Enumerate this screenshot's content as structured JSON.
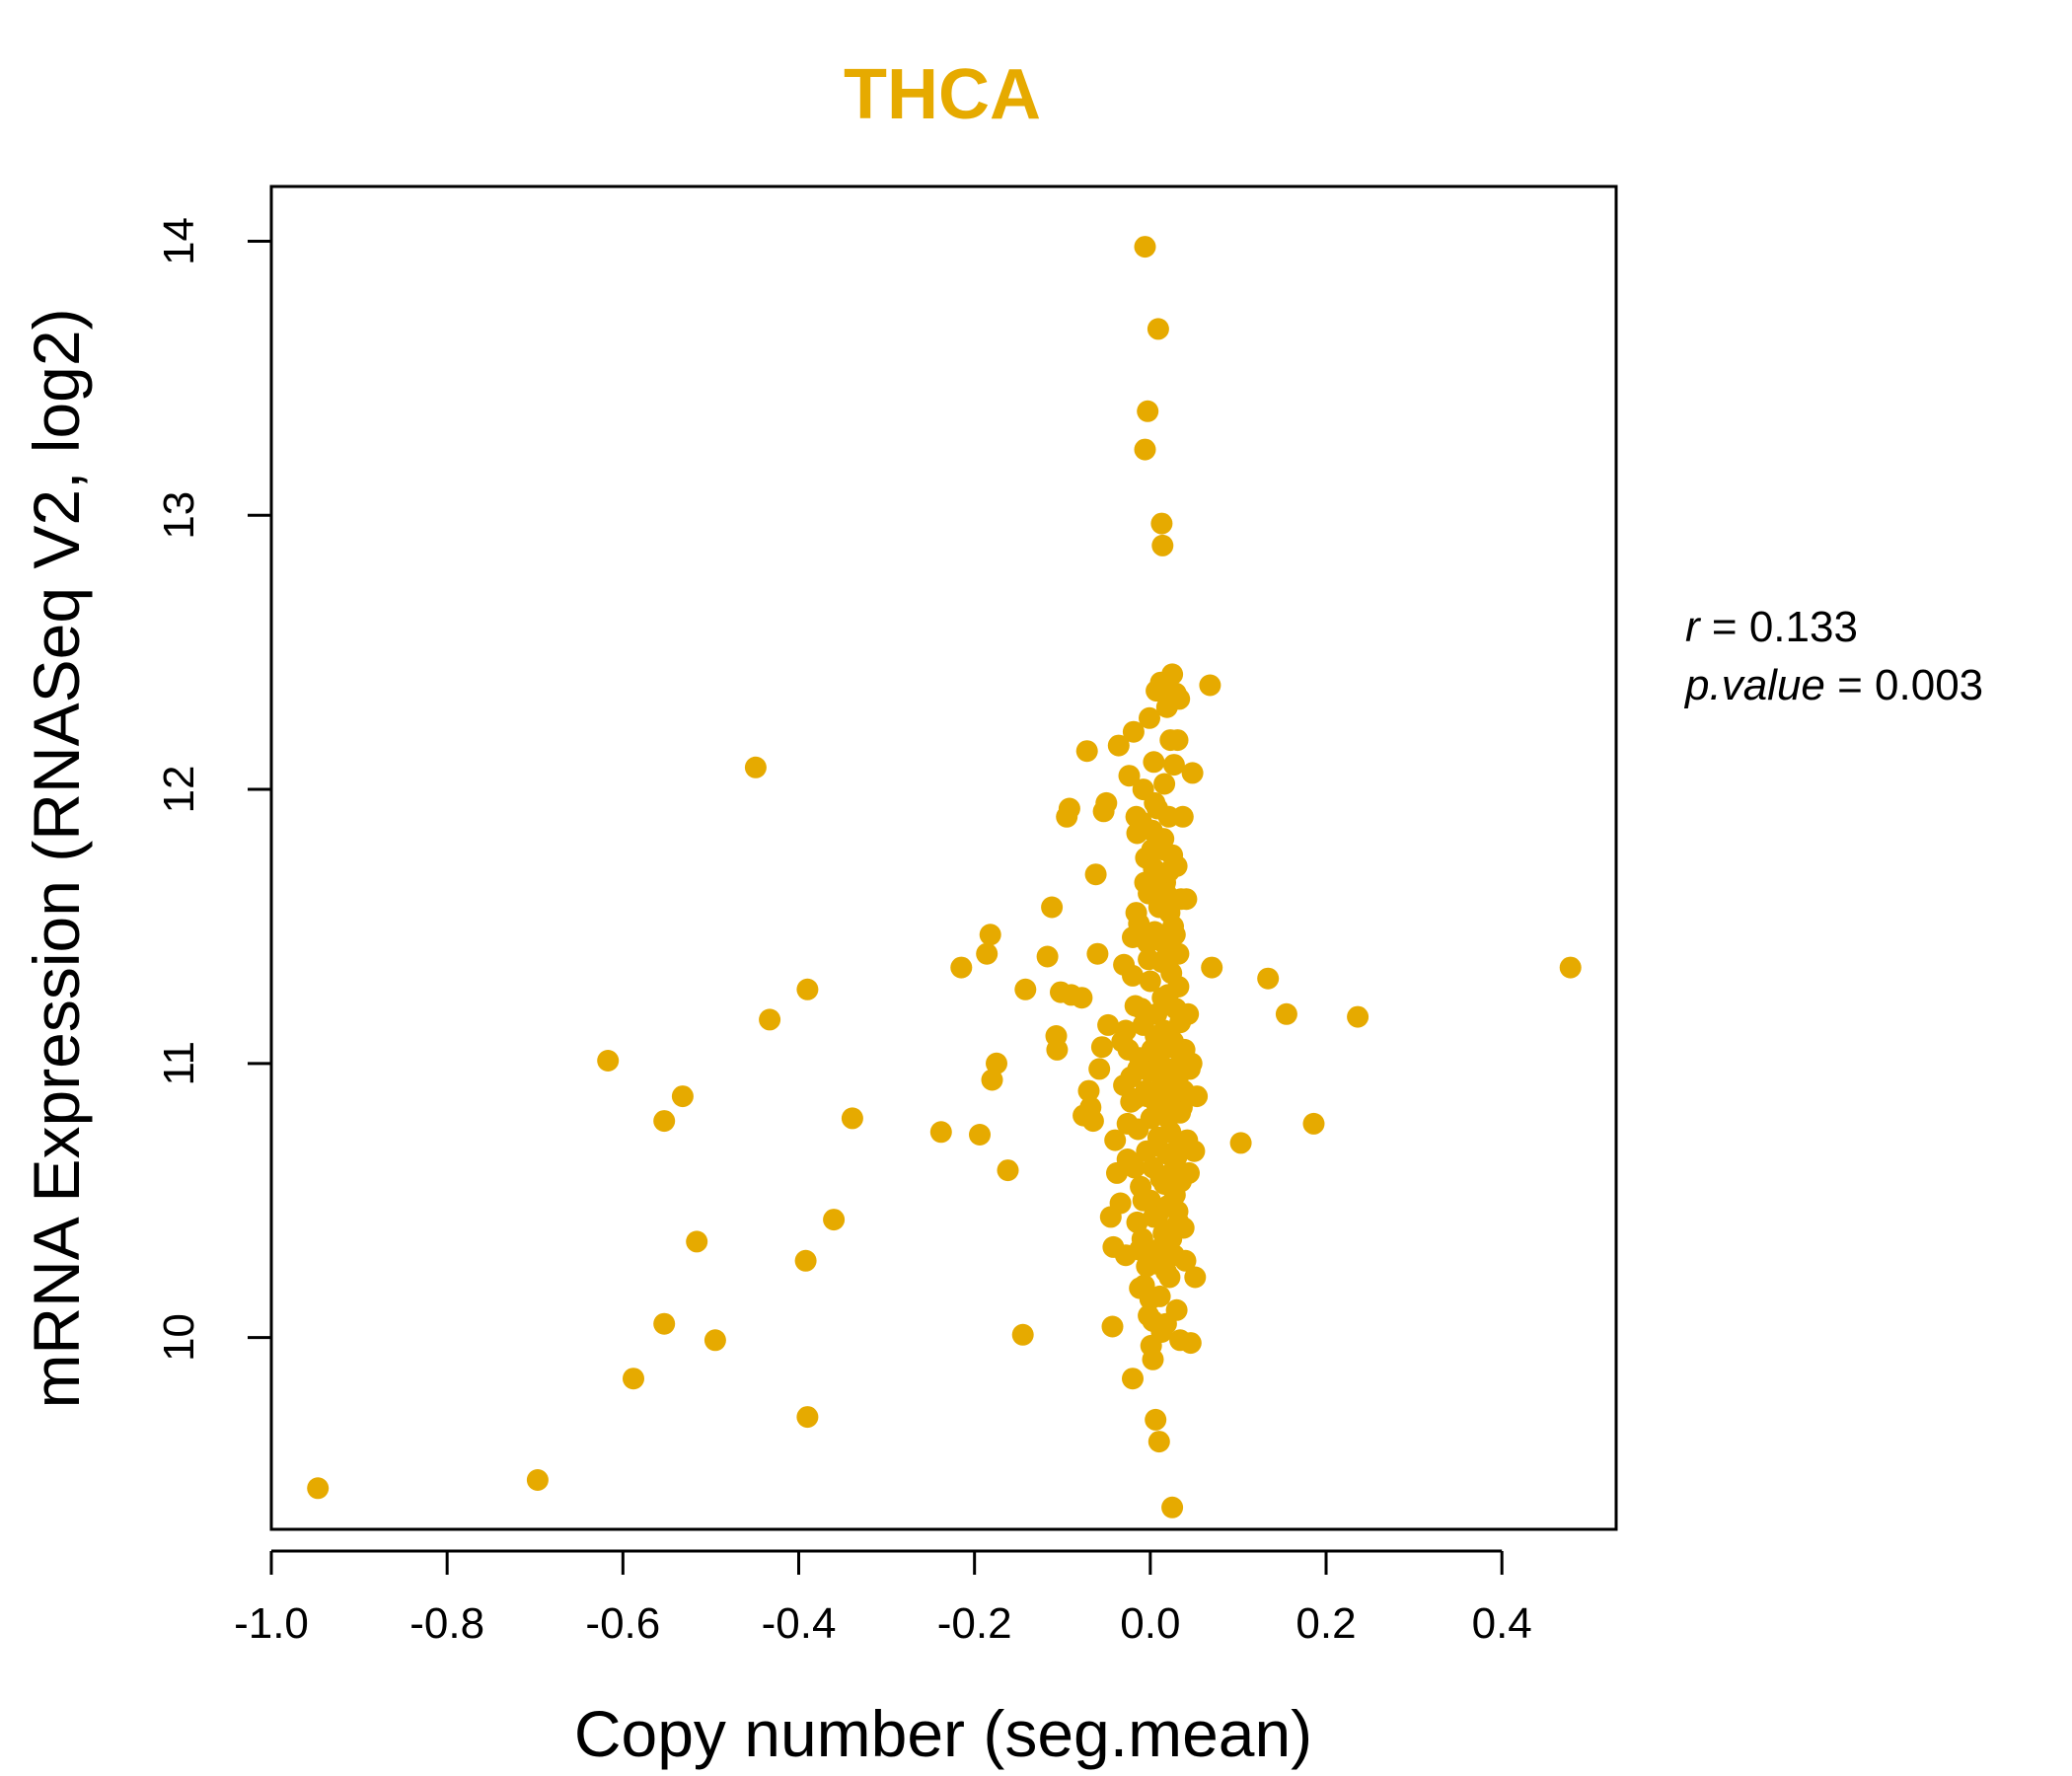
{
  "colors": {
    "point": "#E6AA00",
    "title": "#E6AA00",
    "axis": "#000000"
  },
  "chart_data": {
    "type": "scatter",
    "title": "THCA",
    "xlabel": "Copy number (seg.mean)",
    "ylabel": "mRNA Expression (RNASeq V2, log2)",
    "xlim": [
      -1.0,
      0.53
    ],
    "ylim": [
      9.3,
      14.2
    ],
    "x_ticks": [
      -1.0,
      -0.8,
      -0.6,
      -0.4,
      -0.2,
      0.0,
      0.2,
      0.4
    ],
    "x_tick_labels": [
      "-1.0",
      "-0.8",
      "-0.6",
      "-0.4",
      "-0.2",
      "0.0",
      "0.2",
      "0.4"
    ],
    "y_ticks": [
      10,
      11,
      12,
      13,
      14
    ],
    "y_tick_labels": [
      "10",
      "11",
      "12",
      "13",
      "14"
    ],
    "grid": false,
    "annotations": {
      "r_label": "r",
      "r_eq": " = ",
      "r_value": "0.133",
      "p_label": "p.value",
      "p_eq": " = ",
      "p_value": "0.003"
    },
    "points": [
      [
        -0.947,
        9.45
      ],
      [
        -0.697,
        9.48
      ],
      [
        -0.588,
        9.85
      ],
      [
        -0.617,
        11.01
      ],
      [
        -0.553,
        10.05
      ],
      [
        -0.553,
        10.79
      ],
      [
        -0.532,
        10.88
      ],
      [
        -0.516,
        10.35
      ],
      [
        -0.495,
        9.99
      ],
      [
        -0.449,
        12.08
      ],
      [
        -0.433,
        11.16
      ],
      [
        -0.39,
        11.27
      ],
      [
        -0.39,
        9.71
      ],
      [
        -0.392,
        10.28
      ],
      [
        -0.36,
        10.43
      ],
      [
        -0.339,
        10.8
      ],
      [
        -0.238,
        10.75
      ],
      [
        -0.215,
        11.35
      ],
      [
        -0.194,
        10.74
      ],
      [
        -0.186,
        11.4
      ],
      [
        -0.182,
        11.47
      ],
      [
        -0.18,
        10.94
      ],
      [
        -0.175,
        11.0
      ],
      [
        -0.162,
        10.61
      ],
      [
        -0.145,
        10.01
      ],
      [
        -0.142,
        11.27
      ],
      [
        -0.117,
        11.39
      ],
      [
        -0.112,
        11.57
      ],
      [
        -0.107,
        11.1
      ],
      [
        -0.106,
        11.05
      ],
      [
        -0.102,
        11.26
      ],
      [
        -0.095,
        11.9
      ],
      [
        -0.092,
        11.93
      ],
      [
        -0.09,
        11.25
      ],
      [
        -0.078,
        11.24
      ],
      [
        -0.076,
        10.81
      ],
      [
        -0.072,
        12.14
      ],
      [
        -0.07,
        10.9
      ],
      [
        -0.068,
        10.84
      ],
      [
        -0.065,
        10.79
      ],
      [
        -0.062,
        11.69
      ],
      [
        -0.06,
        11.4
      ],
      [
        -0.058,
        10.98
      ],
      [
        -0.055,
        11.06
      ],
      [
        -0.053,
        11.92
      ],
      [
        -0.05,
        11.95
      ],
      [
        -0.048,
        11.14
      ],
      [
        -0.045,
        10.44
      ],
      [
        -0.043,
        10.04
      ],
      [
        -0.042,
        10.33
      ],
      [
        -0.04,
        10.72
      ],
      [
        -0.038,
        10.6
      ],
      [
        -0.036,
        12.16
      ],
      [
        -0.034,
        10.49
      ],
      [
        -0.032,
        11.08
      ],
      [
        -0.03,
        11.36
      ],
      [
        -0.028,
        10.3
      ],
      [
        -0.026,
        10.65
      ],
      [
        -0.024,
        12.05
      ],
      [
        -0.022,
        10.95
      ],
      [
        -0.02,
        9.85
      ],
      [
        -0.019,
        12.21
      ],
      [
        -0.018,
        10.87
      ],
      [
        -0.017,
        11.21
      ],
      [
        -0.016,
        11.9
      ],
      [
        -0.015,
        10.42
      ],
      [
        -0.014,
        10.76
      ],
      [
        -0.013,
        11.51
      ],
      [
        -0.012,
        11.02
      ],
      [
        -0.011,
        10.55
      ],
      [
        -0.01,
        11.88
      ],
      [
        -0.009,
        10.36
      ],
      [
        -0.008,
        11.14
      ],
      [
        -0.007,
        10.19
      ],
      [
        -0.006,
        13.98
      ],
      [
        -0.006,
        13.24
      ],
      [
        -0.005,
        11.75
      ],
      [
        -0.005,
        10.9
      ],
      [
        -0.004,
        10.68
      ],
      [
        -0.003,
        13.38
      ],
      [
        -0.003,
        11.44
      ],
      [
        -0.002,
        10.08
      ],
      [
        -0.002,
        11.62
      ],
      [
        -0.001,
        10.97
      ],
      [
        -0.001,
        12.26
      ],
      [
        0.0,
        10.5
      ],
      [
        0.0,
        11.3
      ],
      [
        0.001,
        9.97
      ],
      [
        0.001,
        10.8
      ],
      [
        0.002,
        11.85
      ],
      [
        0.002,
        11.05
      ],
      [
        0.003,
        9.92
      ],
      [
        0.003,
        10.62
      ],
      [
        0.004,
        11.71
      ],
      [
        0.004,
        12.1
      ],
      [
        0.005,
        10.27
      ],
      [
        0.005,
        11.48
      ],
      [
        0.006,
        9.7
      ],
      [
        0.006,
        10.86
      ],
      [
        0.007,
        12.36
      ],
      [
        0.007,
        11.18
      ],
      [
        0.008,
        10.44
      ],
      [
        0.008,
        11.93
      ],
      [
        0.009,
        10.73
      ],
      [
        0.009,
        13.68
      ],
      [
        0.01,
        9.62
      ],
      [
        0.01,
        11.57
      ],
      [
        0.011,
        10.15
      ],
      [
        0.011,
        11.0
      ],
      [
        0.012,
        12.39
      ],
      [
        0.012,
        10.58
      ],
      [
        0.013,
        11.37
      ],
      [
        0.013,
        12.97
      ],
      [
        0.014,
        12.89
      ],
      [
        0.014,
        10.92
      ],
      [
        0.015,
        11.78
      ],
      [
        0.015,
        10.38
      ],
      [
        0.016,
        11.12
      ],
      [
        0.016,
        12.02
      ],
      [
        0.017,
        10.82
      ],
      [
        0.017,
        11.66
      ],
      [
        0.018,
        10.05
      ],
      [
        0.018,
        11.43
      ],
      [
        0.019,
        10.67
      ],
      [
        0.019,
        12.3
      ],
      [
        0.02,
        11.25
      ],
      [
        0.02,
        10.48
      ],
      [
        0.021,
        11.9
      ],
      [
        0.021,
        10.98
      ],
      [
        0.022,
        11.55
      ],
      [
        0.022,
        10.22
      ],
      [
        0.023,
        12.18
      ],
      [
        0.023,
        10.75
      ],
      [
        0.024,
        11.33
      ],
      [
        0.024,
        10.6
      ],
      [
        0.025,
        12.42
      ],
      [
        0.025,
        9.38
      ],
      [
        0.026,
        11.08
      ],
      [
        0.026,
        10.88
      ],
      [
        0.027,
        12.09
      ],
      [
        0.027,
        10.3
      ],
      [
        0.028,
        11.47
      ],
      [
        0.028,
        10.52
      ],
      [
        0.029,
        12.35
      ],
      [
        0.029,
        11.2
      ],
      [
        0.03,
        10.1
      ],
      [
        0.03,
        11.72
      ],
      [
        0.031,
        10.94
      ],
      [
        0.031,
        12.18
      ],
      [
        0.032,
        10.42
      ],
      [
        0.032,
        11.4
      ],
      [
        0.033,
        10.71
      ],
      [
        0.033,
        12.33
      ],
      [
        0.034,
        9.99
      ],
      [
        0.034,
        11.15
      ],
      [
        0.035,
        10.57
      ],
      [
        0.035,
        11.6
      ],
      [
        0.036,
        10.84
      ],
      [
        0.037,
        11.9
      ],
      [
        0.038,
        10.4
      ],
      [
        0.039,
        11.05
      ],
      [
        0.04,
        10.28
      ],
      [
        0.041,
        11.6
      ],
      [
        0.042,
        10.72
      ],
      [
        0.043,
        11.18
      ],
      [
        0.044,
        10.6
      ],
      [
        0.045,
        10.98
      ],
      [
        0.046,
        9.98
      ],
      [
        0.047,
        11.0
      ],
      [
        0.048,
        12.06
      ],
      [
        0.05,
        10.68
      ],
      [
        0.051,
        10.22
      ],
      [
        0.053,
        10.88
      ],
      [
        0.068,
        12.38
      ],
      [
        0.07,
        11.35
      ],
      [
        0.103,
        10.71
      ],
      [
        0.134,
        11.31
      ],
      [
        0.155,
        11.18
      ],
      [
        0.186,
        10.78
      ],
      [
        0.236,
        11.17
      ],
      [
        0.478,
        11.35
      ],
      [
        -0.025,
        11.05
      ],
      [
        -0.022,
        10.86
      ],
      [
        -0.02,
        11.32
      ],
      [
        -0.018,
        10.62
      ],
      [
        -0.016,
        11.55
      ],
      [
        -0.014,
        10.98
      ],
      [
        -0.012,
        10.32
      ],
      [
        -0.01,
        11.2
      ],
      [
        -0.008,
        10.5
      ],
      [
        -0.006,
        11.66
      ],
      [
        -0.004,
        10.88
      ],
      [
        -0.002,
        11.38
      ],
      [
        0.0,
        10.14
      ],
      [
        0.002,
        11.78
      ],
      [
        0.004,
        10.44
      ],
      [
        0.006,
        11.1
      ],
      [
        0.008,
        10.7
      ],
      [
        0.01,
        11.45
      ],
      [
        0.012,
        10.9
      ],
      [
        0.014,
        11.24
      ],
      [
        0.016,
        10.56
      ],
      [
        0.018,
        11.62
      ],
      [
        0.02,
        10.8
      ],
      [
        0.022,
        11.06
      ],
      [
        0.024,
        10.36
      ],
      [
        0.026,
        11.5
      ],
      [
        0.028,
        10.96
      ],
      [
        0.03,
        10.66
      ],
      [
        0.032,
        11.28
      ],
      [
        0.034,
        10.82
      ],
      [
        -0.015,
        11.84
      ],
      [
        -0.008,
        12.0
      ],
      [
        0.005,
        11.95
      ],
      [
        0.015,
        11.82
      ],
      [
        0.025,
        11.76
      ],
      [
        -0.012,
        10.18
      ],
      [
        -0.004,
        10.26
      ],
      [
        0.008,
        10.32
      ],
      [
        0.018,
        10.24
      ],
      [
        0.028,
        10.4
      ],
      [
        -0.03,
        10.92
      ],
      [
        -0.028,
        11.12
      ],
      [
        -0.026,
        10.78
      ],
      [
        0.036,
        11.02
      ],
      [
        0.038,
        10.9
      ],
      [
        -0.02,
        11.46
      ],
      [
        0.003,
        10.06
      ],
      [
        0.013,
        10.02
      ],
      [
        0.021,
        11.7
      ],
      [
        0.031,
        10.46
      ]
    ]
  }
}
